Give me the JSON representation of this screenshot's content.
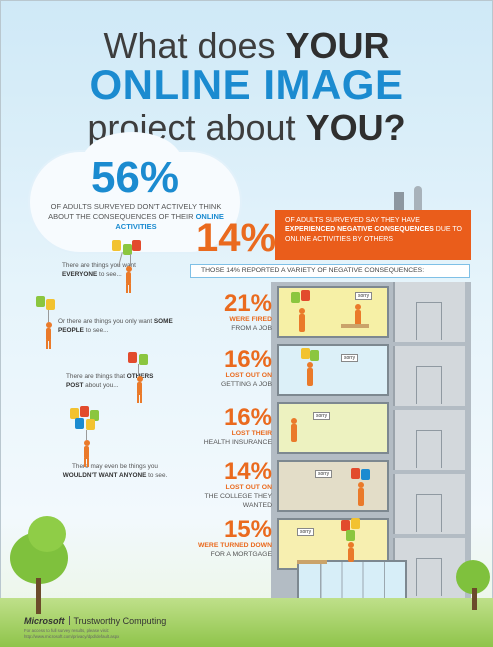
{
  "title": {
    "line1_prefix": "What does ",
    "line1_strong": "YOUR",
    "line2": "ONLINE IMAGE",
    "line3_prefix": "project about ",
    "line3_strong": "YOU?"
  },
  "intro": {
    "percent": "56%",
    "text_prefix": "OF ADULTS SURVEYED DON'T ACTIVELY THINK ABOUT THE CONSEQUENCES OF THEIR ",
    "text_strong": "ONLINE ACTIVITIES"
  },
  "captions": [
    {
      "prefix": "There are things you want ",
      "strong": "EVERYONE",
      "suffix": " to see..."
    },
    {
      "prefix": "Or there are things you only want ",
      "strong": "SOME PEOPLE",
      "suffix": " to see..."
    },
    {
      "prefix": "There are things that ",
      "strong": "OTHERS POST",
      "suffix": " about you..."
    },
    {
      "prefix": "There may even be things you ",
      "strong": "WOULDN'T WANT ANYONE",
      "suffix": " to see."
    }
  ],
  "negative": {
    "percent": "14%",
    "text_prefix": "OF ADULTS SURVEYED SAY THEY HAVE ",
    "text_strong": "EXPERIENCED NEGATIVE CONSEQUENCES",
    "text_suffix": " DUE TO ONLINE ACTIVITIES BY OTHERS",
    "bar": "THOSE 14% REPORTED A VARIETY OF NEGATIVE CONSEQUENCES:"
  },
  "consequences": [
    {
      "percent": "21%",
      "strong": "WERE FIRED",
      "rest": "FROM A JOB"
    },
    {
      "percent": "16%",
      "strong": "LOST OUT ON",
      "rest": "GETTING A JOB"
    },
    {
      "percent": "16%",
      "strong": "LOST THEIR",
      "rest": "HEALTH INSURANCE"
    },
    {
      "percent": "14%",
      "strong": "LOST OUT ON",
      "rest": "THE COLLEGE THEY WANTED"
    },
    {
      "percent": "15%",
      "strong": "WERE TURNED DOWN",
      "rest": "FOR A MORTGAGE"
    }
  ],
  "speech": "sorry",
  "footer": {
    "brand": "Microsoft",
    "product": "Trustworthy Computing",
    "fine1": "For access to full survey results, please visit:",
    "fine2": "http://www.microsoft.com/privacy/dpd/default.aspx"
  },
  "colors": {
    "accent_blue": "#1b8bd0",
    "accent_orange": "#ea5d1b",
    "sky": "#cfe9f7",
    "grass": "#8fc44a",
    "building": "#b3bcc4"
  },
  "icons": [
    "balloon-person-icon",
    "building-illustration",
    "tree-icon",
    "microsoft-logo"
  ]
}
